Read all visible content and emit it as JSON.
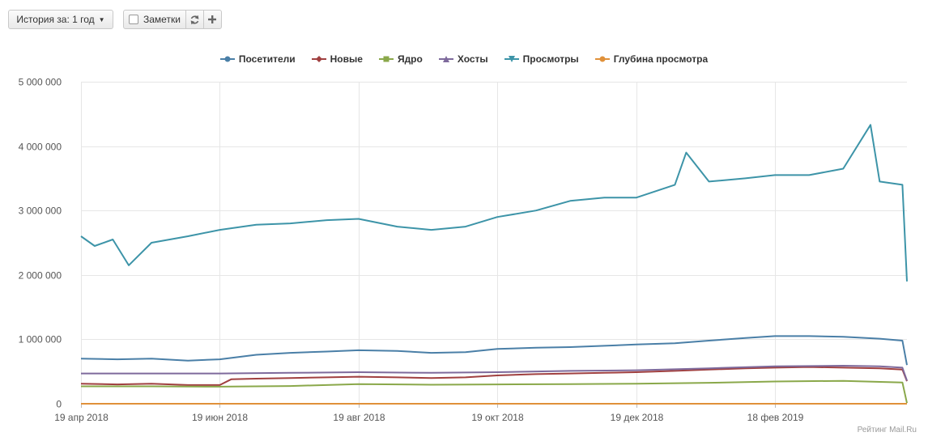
{
  "toolbar": {
    "history_label": "История за: 1 год",
    "notes_label": "Заметки",
    "refresh_icon": "refresh-icon",
    "add_icon": "plus-icon"
  },
  "credit": "Рейтинг Mail.Ru",
  "chart_data": {
    "type": "line",
    "title": "",
    "xlabel": "",
    "ylabel": "",
    "ylim": [
      0,
      5000000
    ],
    "yticks": [
      0,
      1000000,
      2000000,
      3000000,
      4000000,
      5000000
    ],
    "ytick_labels": [
      "0",
      "1 000 000",
      "2 000 000",
      "3 000 000",
      "4 000 000",
      "5 000 000"
    ],
    "xlim": [
      "2018-04-19",
      "2019-04-17"
    ],
    "xticks": [
      "2018-04-19",
      "2018-06-19",
      "2018-08-19",
      "2018-10-19",
      "2018-12-19",
      "2019-02-18"
    ],
    "xtick_labels": [
      "19 апр 2018",
      "19 июн 2018",
      "19 авг 2018",
      "19 окт 2018",
      "19 дек 2018",
      "18 фев 2019"
    ],
    "grid": true,
    "legend_position": "top",
    "series": [
      {
        "name": "Посетители",
        "color": "#4a7fa7",
        "marker": "circle",
        "points": [
          [
            "2018-04-19",
            700000
          ],
          [
            "2018-05-05",
            690000
          ],
          [
            "2018-05-20",
            700000
          ],
          [
            "2018-06-05",
            670000
          ],
          [
            "2018-06-19",
            690000
          ],
          [
            "2018-07-05",
            760000
          ],
          [
            "2018-07-20",
            790000
          ],
          [
            "2018-08-05",
            810000
          ],
          [
            "2018-08-19",
            830000
          ],
          [
            "2018-09-05",
            820000
          ],
          [
            "2018-09-20",
            790000
          ],
          [
            "2018-10-05",
            800000
          ],
          [
            "2018-10-19",
            850000
          ],
          [
            "2018-11-05",
            870000
          ],
          [
            "2018-11-20",
            880000
          ],
          [
            "2018-12-05",
            900000
          ],
          [
            "2018-12-19",
            920000
          ],
          [
            "2019-01-05",
            940000
          ],
          [
            "2019-01-20",
            980000
          ],
          [
            "2019-02-05",
            1020000
          ],
          [
            "2019-02-18",
            1050000
          ],
          [
            "2019-03-05",
            1050000
          ],
          [
            "2019-03-20",
            1040000
          ],
          [
            "2019-04-05",
            1010000
          ],
          [
            "2019-04-15",
            980000
          ],
          [
            "2019-04-17",
            600000
          ]
        ]
      },
      {
        "name": "Новые",
        "color": "#a04040",
        "marker": "diamond",
        "points": [
          [
            "2018-04-19",
            310000
          ],
          [
            "2018-05-05",
            300000
          ],
          [
            "2018-05-20",
            310000
          ],
          [
            "2018-06-05",
            290000
          ],
          [
            "2018-06-19",
            290000
          ],
          [
            "2018-06-24",
            380000
          ],
          [
            "2018-07-05",
            390000
          ],
          [
            "2018-07-20",
            400000
          ],
          [
            "2018-08-05",
            410000
          ],
          [
            "2018-08-19",
            420000
          ],
          [
            "2018-09-05",
            410000
          ],
          [
            "2018-09-20",
            400000
          ],
          [
            "2018-10-05",
            410000
          ],
          [
            "2018-10-19",
            440000
          ],
          [
            "2018-11-05",
            460000
          ],
          [
            "2018-11-20",
            470000
          ],
          [
            "2018-12-05",
            480000
          ],
          [
            "2018-12-19",
            490000
          ],
          [
            "2019-01-05",
            510000
          ],
          [
            "2019-01-20",
            530000
          ],
          [
            "2019-02-05",
            550000
          ],
          [
            "2019-02-18",
            560000
          ],
          [
            "2019-03-05",
            570000
          ],
          [
            "2019-03-20",
            560000
          ],
          [
            "2019-04-05",
            550000
          ],
          [
            "2019-04-15",
            530000
          ],
          [
            "2019-04-17",
            350000
          ]
        ]
      },
      {
        "name": "Ядро",
        "color": "#8aa84a",
        "marker": "square",
        "points": [
          [
            "2018-04-19",
            270000
          ],
          [
            "2018-05-20",
            270000
          ],
          [
            "2018-06-19",
            265000
          ],
          [
            "2018-07-20",
            275000
          ],
          [
            "2018-08-19",
            305000
          ],
          [
            "2018-09-20",
            295000
          ],
          [
            "2018-10-19",
            300000
          ],
          [
            "2018-11-20",
            305000
          ],
          [
            "2018-12-19",
            310000
          ],
          [
            "2019-01-20",
            325000
          ],
          [
            "2019-02-18",
            345000
          ],
          [
            "2019-03-20",
            355000
          ],
          [
            "2019-04-15",
            330000
          ],
          [
            "2019-04-17",
            10000
          ]
        ]
      },
      {
        "name": "Хосты",
        "color": "#7e6a9c",
        "marker": "triangle",
        "points": [
          [
            "2018-04-19",
            470000
          ],
          [
            "2018-05-20",
            470000
          ],
          [
            "2018-06-19",
            470000
          ],
          [
            "2018-07-20",
            480000
          ],
          [
            "2018-08-19",
            490000
          ],
          [
            "2018-09-20",
            480000
          ],
          [
            "2018-10-19",
            490000
          ],
          [
            "2018-11-20",
            510000
          ],
          [
            "2018-12-19",
            520000
          ],
          [
            "2019-01-20",
            550000
          ],
          [
            "2019-02-18",
            580000
          ],
          [
            "2019-03-20",
            590000
          ],
          [
            "2019-04-05",
            580000
          ],
          [
            "2019-04-15",
            560000
          ],
          [
            "2019-04-17",
            360000
          ]
        ]
      },
      {
        "name": "Просмотры",
        "color": "#3d94a8",
        "marker": "triangle-down",
        "points": [
          [
            "2018-04-19",
            2600000
          ],
          [
            "2018-04-25",
            2450000
          ],
          [
            "2018-05-03",
            2550000
          ],
          [
            "2018-05-10",
            2150000
          ],
          [
            "2018-05-20",
            2500000
          ],
          [
            "2018-06-05",
            2600000
          ],
          [
            "2018-06-19",
            2700000
          ],
          [
            "2018-07-05",
            2780000
          ],
          [
            "2018-07-20",
            2800000
          ],
          [
            "2018-08-05",
            2850000
          ],
          [
            "2018-08-19",
            2870000
          ],
          [
            "2018-09-05",
            2750000
          ],
          [
            "2018-09-20",
            2700000
          ],
          [
            "2018-10-05",
            2750000
          ],
          [
            "2018-10-19",
            2900000
          ],
          [
            "2018-11-05",
            3000000
          ],
          [
            "2018-11-20",
            3150000
          ],
          [
            "2018-12-05",
            3200000
          ],
          [
            "2018-12-19",
            3200000
          ],
          [
            "2019-01-05",
            3400000
          ],
          [
            "2019-01-10",
            3900000
          ],
          [
            "2019-01-20",
            3450000
          ],
          [
            "2019-02-05",
            3500000
          ],
          [
            "2019-02-18",
            3550000
          ],
          [
            "2019-03-05",
            3550000
          ],
          [
            "2019-03-20",
            3650000
          ],
          [
            "2019-04-01",
            4330000
          ],
          [
            "2019-04-05",
            3450000
          ],
          [
            "2019-04-15",
            3400000
          ],
          [
            "2019-04-17",
            1900000
          ]
        ]
      },
      {
        "name": "Глубина просмотра",
        "color": "#e0913a",
        "marker": "circle",
        "points": [
          [
            "2018-04-19",
            4
          ],
          [
            "2019-04-17",
            4
          ]
        ]
      }
    ]
  }
}
